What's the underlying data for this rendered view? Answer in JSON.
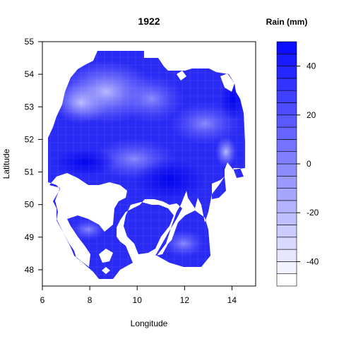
{
  "chart_data": {
    "type": "heatmap",
    "title": "1922",
    "xlabel": "Longitude",
    "ylabel": "Latitude",
    "xlim": [
      6,
      15
    ],
    "ylim": [
      47.5,
      55
    ],
    "x_ticks": [
      6,
      8,
      10,
      12,
      14
    ],
    "y_ticks": [
      48,
      49,
      50,
      51,
      52,
      53,
      54,
      55
    ],
    "legend": {
      "title": "Rain (mm)",
      "range": [
        -50,
        50
      ],
      "ticks": [
        -40,
        -20,
        0,
        20,
        40
      ],
      "step": 5,
      "low_color": "#ffffff",
      "high_color": "#0000ff"
    },
    "grid": false,
    "region_fill": "#2a2af5"
  }
}
